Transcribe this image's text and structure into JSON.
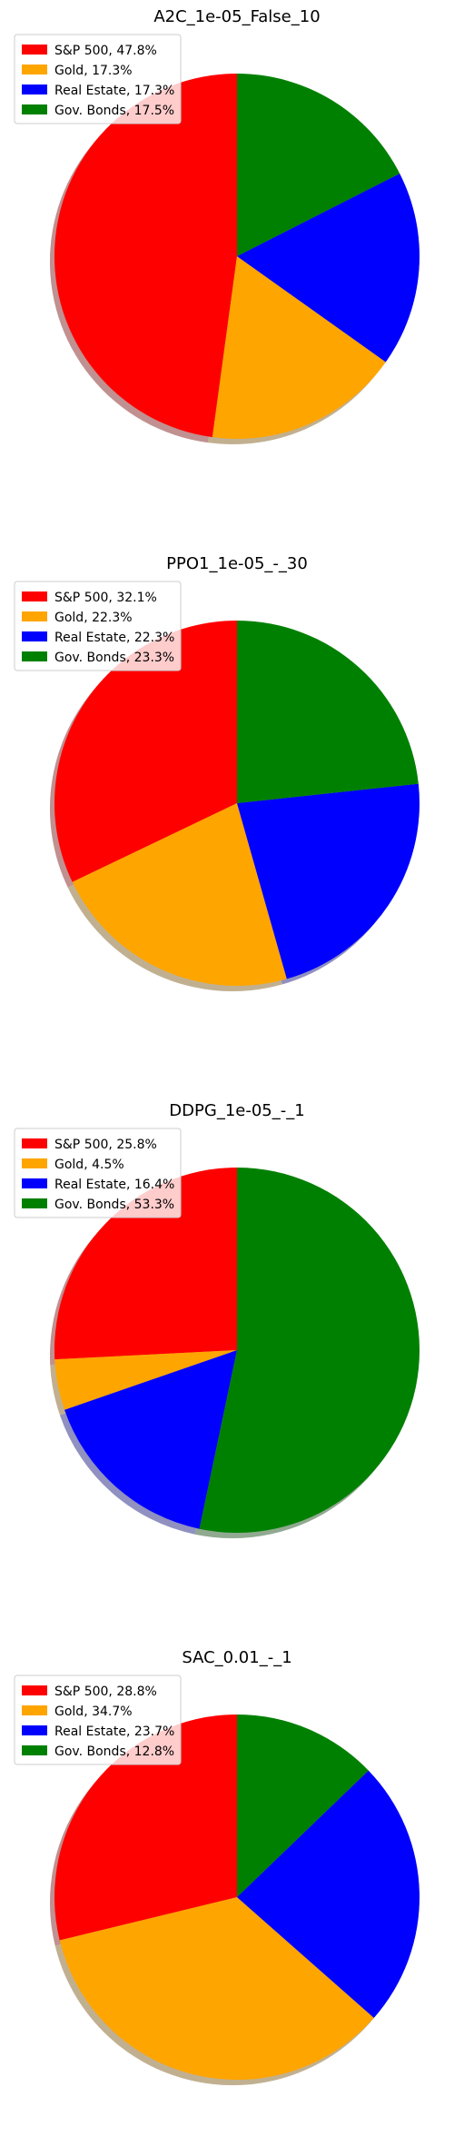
{
  "legend_labels": [
    "S&P 500",
    "Gold",
    "Real Estate",
    "Gov. Bonds"
  ],
  "colors": [
    "#ff0000",
    "#ffa500",
    "#0000ff",
    "#008000"
  ],
  "chart_data": [
    {
      "type": "pie",
      "title": "A2C_1e-05_False_10",
      "categories": [
        "S&P 500",
        "Gold",
        "Real Estate",
        "Gov. Bonds"
      ],
      "values": [
        47.8,
        17.3,
        17.3,
        17.5
      ],
      "legend": [
        "S&P 500, 47.8%",
        "Gold, 17.3%",
        "Real Estate, 17.3%",
        "Gov. Bonds, 17.5%"
      ],
      "legend_position": "upper-left",
      "start_angle": 90,
      "direction": "counterclockwise",
      "shadow": true
    },
    {
      "type": "pie",
      "title": "PPO1_1e-05_-_30",
      "categories": [
        "S&P 500",
        "Gold",
        "Real Estate",
        "Gov. Bonds"
      ],
      "values": [
        32.1,
        22.3,
        22.3,
        23.3
      ],
      "legend": [
        "S&P 500, 32.1%",
        "Gold, 22.3%",
        "Real Estate, 22.3%",
        "Gov. Bonds, 23.3%"
      ],
      "legend_position": "upper-left",
      "start_angle": 90,
      "direction": "counterclockwise",
      "shadow": true
    },
    {
      "type": "pie",
      "title": "DDPG_1e-05_-_1",
      "categories": [
        "S&P 500",
        "Gold",
        "Real Estate",
        "Gov. Bonds"
      ],
      "values": [
        25.8,
        4.5,
        16.4,
        53.3
      ],
      "legend": [
        "S&P 500, 25.8%",
        "Gold, 4.5%",
        "Real Estate, 16.4%",
        "Gov. Bonds, 53.3%"
      ],
      "legend_position": "upper-left",
      "start_angle": 90,
      "direction": "counterclockwise",
      "shadow": true
    },
    {
      "type": "pie",
      "title": "SAC_0.01_-_1",
      "categories": [
        "S&P 500",
        "Gold",
        "Real Estate",
        "Gov. Bonds"
      ],
      "values": [
        28.8,
        34.7,
        23.7,
        12.8
      ],
      "legend": [
        "S&P 500, 28.8%",
        "Gold, 34.7%",
        "Real Estate, 23.7%",
        "Gov. Bonds, 12.8%"
      ],
      "legend_position": "upper-left",
      "start_angle": 90,
      "direction": "counterclockwise",
      "shadow": true
    }
  ]
}
